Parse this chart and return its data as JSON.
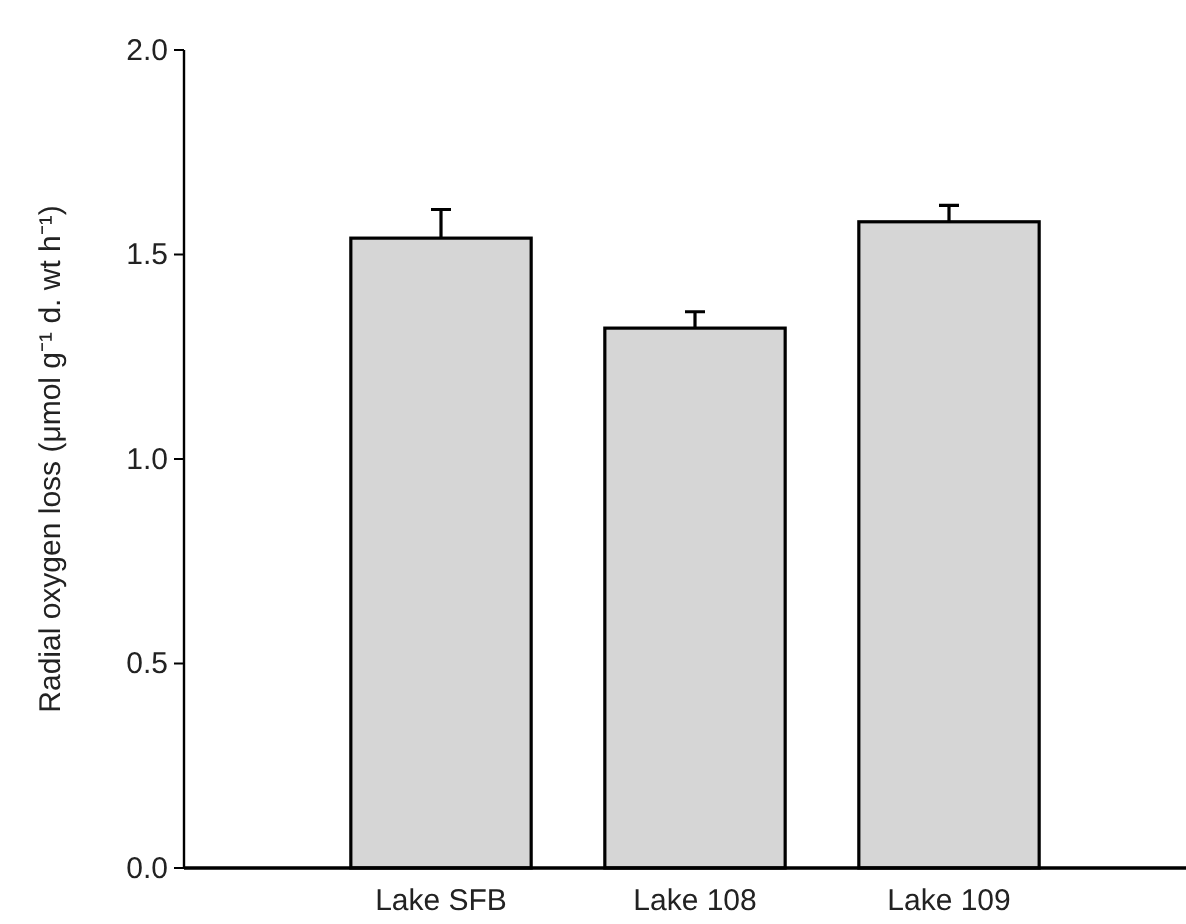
{
  "chart_data": {
    "type": "bar",
    "ylabel": "Radial oxygen loss (μmol g⁻¹ d. wt h⁻¹)",
    "categories": [
      "Lake SFB",
      "Lake 108",
      "Lake 109"
    ],
    "values": [
      1.54,
      1.32,
      1.58
    ],
    "color": "#d6d6d6",
    "errors": [
      [
        1.54,
        1.61
      ],
      [
        1.32,
        1.36
      ],
      [
        1.58,
        1.62
      ]
    ],
    "ylim": [
      0,
      2
    ],
    "yticks": [
      {
        "value": 0,
        "label": "0.0"
      },
      {
        "value": 0.5,
        "label": "0.5"
      },
      {
        "value": 1,
        "label": "1.0"
      },
      {
        "value": 1.5,
        "label": "1.5"
      },
      {
        "value": 2,
        "label": "2.0"
      }
    ],
    "grid": false
  }
}
